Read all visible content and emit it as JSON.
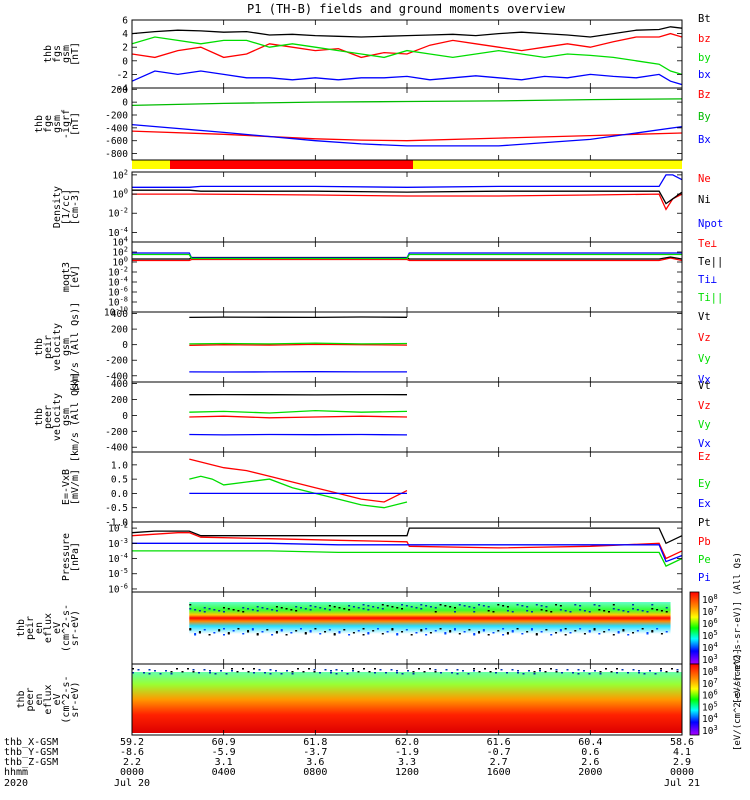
{
  "title": "P1 (TH-B) fields and ground moments overview",
  "x_axis": {
    "rows": [
      {
        "name": "thb_X-GSM",
        "values": [
          "59.2",
          "60.9",
          "61.8",
          "62.0",
          "61.6",
          "60.4",
          "58.6"
        ]
      },
      {
        "name": "thb_Y-GSM",
        "values": [
          "-8.6",
          "-5.9",
          "-3.7",
          "-1.9",
          "-0.7",
          "0.6",
          "4.1"
        ]
      },
      {
        "name": "thb_Z-GSM",
        "values": [
          "2.2",
          "3.1",
          "3.6",
          "3.3",
          "2.7",
          "2.6",
          "2.9"
        ]
      },
      {
        "name": "hhmm",
        "values": [
          "0000",
          "0400",
          "0800",
          "1200",
          "1600",
          "2000",
          "0000"
        ]
      }
    ],
    "year": "2020",
    "date_start": "Jul 20",
    "date_end": "Jul 21",
    "ticks_hours": [
      0,
      4,
      8,
      12,
      16,
      20,
      24
    ]
  },
  "chart_data": [
    {
      "type": "line",
      "ylabel": [
        "thb",
        "fgs",
        "gsm",
        "[nT]"
      ],
      "ylim": [
        -4,
        6
      ],
      "ticks": [
        "6",
        "4",
        "2",
        "0",
        "-2",
        "-4"
      ],
      "x_hours": [
        0,
        1,
        2,
        3,
        4,
        5,
        6,
        7,
        8,
        9,
        10,
        11,
        12,
        13,
        14,
        15,
        16,
        17,
        18,
        19,
        20,
        21,
        22,
        23,
        23.5,
        24
      ],
      "series": [
        {
          "name": "Bt",
          "color": "#000000",
          "values": [
            4.0,
            4.3,
            4.5,
            4.4,
            4.2,
            4.3,
            3.8,
            3.9,
            3.7,
            3.6,
            3.5,
            3.6,
            3.7,
            3.8,
            3.9,
            3.7,
            4.0,
            4.2,
            4.0,
            3.8,
            3.5,
            4.0,
            4.5,
            4.6,
            5.0,
            4.8
          ]
        },
        {
          "name": "bz",
          "color": "#ff0000",
          "values": [
            1.0,
            0.5,
            1.5,
            2.0,
            0.5,
            1.0,
            2.5,
            2.0,
            1.5,
            1.8,
            0.5,
            1.2,
            1.0,
            2.3,
            3.0,
            2.5,
            2.0,
            1.5,
            2.0,
            2.5,
            2.0,
            2.8,
            3.5,
            3.5,
            4.0,
            3.5
          ]
        },
        {
          "name": "by",
          "color": "#00dd00",
          "values": [
            2.5,
            3.5,
            3.0,
            2.5,
            3.0,
            3.0,
            2.0,
            2.5,
            2.0,
            1.5,
            1.0,
            0.5,
            1.5,
            1.0,
            0.5,
            1.0,
            1.5,
            1.0,
            0.5,
            1.0,
            0.8,
            0.5,
            0.0,
            -0.5,
            -1.5,
            -2.0
          ]
        },
        {
          "name": "bx",
          "color": "#0000ff",
          "values": [
            -3.0,
            -1.5,
            -2.0,
            -1.5,
            -2.0,
            -2.5,
            -2.5,
            -2.8,
            -2.5,
            -2.8,
            -2.5,
            -2.5,
            -2.3,
            -2.8,
            -2.5,
            -2.2,
            -2.5,
            -2.8,
            -2.3,
            -2.5,
            -2.0,
            -2.3,
            -2.5,
            -2.0,
            -3.0,
            -3.5
          ]
        }
      ]
    },
    {
      "type": "line",
      "ylabel": [
        "thb",
        "fge",
        "gsm",
        "-igrf",
        "[nT]"
      ],
      "ylim": [
        -900,
        220
      ],
      "ticks": [
        "200",
        "0",
        "-200",
        "-400",
        "-600",
        "-800"
      ],
      "x_hours": [
        0,
        4,
        8,
        10,
        12,
        16,
        20,
        24
      ],
      "series": [
        {
          "name": "Bz",
          "color": "#ff0000",
          "values": [
            -450,
            -500,
            -570,
            -590,
            -600,
            -560,
            -520,
            -480
          ]
        },
        {
          "name": "By",
          "color": "#00bb00",
          "values": [
            -50,
            -20,
            0,
            5,
            10,
            20,
            40,
            50
          ]
        },
        {
          "name": "Bx",
          "color": "#0000ff",
          "values": [
            -350,
            -470,
            -600,
            -650,
            -680,
            -680,
            -580,
            -380
          ]
        }
      ]
    },
    {
      "type": "line",
      "log": true,
      "ylabel": [
        "Density",
        "[1/cc]",
        "[cm-3]"
      ],
      "ylim": [
        -5,
        2.3
      ],
      "ticks": [
        "10^2",
        "10^0",
        "10^-2",
        "10^-4"
      ],
      "x_hours": [
        0,
        1,
        2,
        2.5,
        3,
        8,
        12,
        16,
        20,
        23,
        23.3,
        23.6,
        24
      ],
      "series": [
        {
          "name": "Ne",
          "color": "#ff0000",
          "values": [
            0.0,
            0.0,
            0.0,
            0.0,
            0.0,
            -0.1,
            -0.2,
            -0.2,
            -0.1,
            0.0,
            -1.6,
            -0.5,
            0.0
          ]
        },
        {
          "name": "Ni",
          "color": "#000000",
          "values": [
            0.4,
            0.4,
            0.4,
            0.4,
            0.3,
            0.3,
            0.2,
            0.3,
            0.3,
            0.3,
            -1.0,
            -0.5,
            0.2
          ]
        },
        {
          "name": "Npot",
          "color": "#0000ff",
          "values": [
            0.7,
            0.7,
            0.7,
            0.7,
            0.8,
            0.8,
            0.7,
            0.8,
            0.8,
            0.8,
            2.0,
            2.0,
            1.5
          ]
        }
      ]
    },
    {
      "type": "line",
      "log": true,
      "ylabel": [
        "moqt3",
        "[eV]"
      ],
      "ylim": [
        -10,
        4
      ],
      "ticks": [
        "10^4",
        "10^2",
        "10^0",
        "10^-2",
        "10^-4",
        "10^-6",
        "10^-8",
        "10^-10"
      ],
      "x_hours": [
        0,
        2.5,
        2.6,
        12,
        12.1,
        23,
        23.5,
        24
      ],
      "series": [
        {
          "name": "Te⊥",
          "color": "#ff0000",
          "values": [
            0.3,
            0.3,
            0.5,
            0.5,
            0.3,
            0.3,
            0.8,
            0.3
          ]
        },
        {
          "name": "Te||",
          "color": "#000000",
          "values": [
            0.6,
            0.6,
            0.9,
            0.9,
            0.6,
            0.6,
            1.0,
            0.6
          ]
        },
        {
          "name": "Ti⊥",
          "color": "#0000ff",
          "values": [
            1.8,
            1.8,
            0.8,
            0.8,
            1.8,
            1.8,
            1.8,
            1.8
          ]
        },
        {
          "name": "Ti||",
          "color": "#00dd00",
          "values": [
            1.5,
            1.5,
            0.7,
            0.7,
            1.5,
            1.5,
            1.5,
            1.5
          ]
        }
      ]
    },
    {
      "type": "line",
      "ylabel": [
        "thb",
        "peir",
        "velocity",
        "gsm",
        "[km/s (All Qs)]"
      ],
      "ylim": [
        -480,
        420
      ],
      "ticks": [
        "400",
        "200",
        "0",
        "-200",
        "-400"
      ],
      "x_hours": [
        2.5,
        4,
        6,
        8,
        10,
        12
      ],
      "series": [
        {
          "name": "Vt",
          "color": "#000000",
          "values": [
            350,
            355,
            352,
            350,
            356,
            352
          ]
        },
        {
          "name": "Vz",
          "color": "#ff0000",
          "values": [
            -10,
            0,
            -5,
            5,
            0,
            -5
          ]
        },
        {
          "name": "Vy",
          "color": "#00dd00",
          "values": [
            10,
            15,
            10,
            20,
            10,
            15
          ]
        },
        {
          "name": "Vx",
          "color": "#0000ff",
          "values": [
            -350,
            -352,
            -350,
            -348,
            -350,
            -350
          ]
        }
      ]
    },
    {
      "type": "line",
      "ylabel": [
        "thb",
        "peer",
        "velocity",
        "gsm",
        "[km/s (All Qs)]"
      ],
      "ylim": [
        -460,
        420
      ],
      "ticks": [
        "400",
        "200",
        "0",
        "-200",
        "-400"
      ],
      "x_hours": [
        2.5,
        4,
        6,
        8,
        10,
        12
      ],
      "series": [
        {
          "name": "Vt",
          "color": "#000000",
          "values": [
            260,
            262,
            260,
            258,
            262,
            260
          ]
        },
        {
          "name": "Vz",
          "color": "#ff0000",
          "values": [
            -20,
            -10,
            -30,
            -20,
            -10,
            -20
          ]
        },
        {
          "name": "Vy",
          "color": "#00dd00",
          "values": [
            40,
            50,
            30,
            60,
            40,
            50
          ]
        },
        {
          "name": "Vx",
          "color": "#0000ff",
          "values": [
            -240,
            -245,
            -240,
            -242,
            -240,
            -245
          ]
        }
      ]
    },
    {
      "type": "line",
      "ylabel": [
        "E=-VxB",
        "[mV/m]"
      ],
      "ylim": [
        -1.0,
        1.45
      ],
      "ticks": [
        "1.0",
        "0.5",
        "0.0",
        "-0.5",
        "-1.0"
      ],
      "x_hours": [
        2.5,
        3,
        3.5,
        4,
        5,
        6,
        7,
        8,
        9,
        10,
        11,
        12
      ],
      "series": [
        {
          "name": "Ez",
          "color": "#ff0000",
          "values": [
            1.2,
            1.1,
            1.0,
            0.9,
            0.8,
            0.6,
            0.4,
            0.2,
            0.0,
            -0.2,
            -0.3,
            0.1
          ]
        },
        {
          "name": "Ey",
          "color": "#00dd00",
          "values": [
            0.5,
            0.6,
            0.5,
            0.3,
            0.4,
            0.5,
            0.2,
            0.0,
            -0.2,
            -0.4,
            -0.5,
            -0.3
          ]
        },
        {
          "name": "Ex",
          "color": "#0000ff",
          "values": [
            0.0,
            0.0,
            0.0,
            0.0,
            0.0,
            0.0,
            0.0,
            0.0,
            0.0,
            0.0,
            0.0,
            0.0
          ]
        }
      ]
    },
    {
      "type": "line",
      "log": true,
      "ylabel": [
        "Pressure",
        "[nPa]"
      ],
      "ylim": [
        -6.2,
        -1.6
      ],
      "ticks": [
        "10^-2",
        "10^-3",
        "10^-4",
        "10^-5",
        "10^-6"
      ],
      "x_hours": [
        0,
        1,
        2,
        2.5,
        3,
        6,
        9,
        12,
        12.1,
        16,
        20,
        23,
        23.3,
        24
      ],
      "series": [
        {
          "name": "Pt",
          "color": "#000000",
          "values": [
            -2.3,
            -2.2,
            -2.2,
            -2.2,
            -2.5,
            -2.5,
            -2.5,
            -2.5,
            -2.0,
            -2.0,
            -2.0,
            -2.0,
            -3.0,
            -2.5
          ]
        },
        {
          "name": "Pb",
          "color": "#ff0000",
          "values": [
            -2.5,
            -2.4,
            -2.3,
            -2.3,
            -2.6,
            -2.7,
            -2.8,
            -2.9,
            -3.2,
            -3.3,
            -3.2,
            -3.0,
            -4.0,
            -3.5
          ]
        },
        {
          "name": "Pe",
          "color": "#00dd00",
          "values": [
            -3.5,
            -3.5,
            -3.5,
            -3.5,
            -3.5,
            -3.5,
            -3.6,
            -3.6,
            -3.6,
            -3.6,
            -3.6,
            -3.6,
            -4.5,
            -4.0
          ]
        },
        {
          "name": "Pi",
          "color": "#0000ff",
          "values": [
            -3.0,
            -3.0,
            -3.0,
            -3.0,
            -3.0,
            -3.0,
            -3.1,
            -3.1,
            -3.1,
            -3.1,
            -3.1,
            -3.1,
            -4.2,
            -3.8
          ]
        }
      ]
    },
    {
      "type": "heatmap",
      "ylabel": [
        "thb",
        "peir",
        "en",
        "eflux",
        "eV",
        "(cm^2-s-",
        "sr-eV)"
      ],
      "ticks": [
        "10000",
        "1000",
        "100",
        "10"
      ],
      "colorbar_ticks": [
        "10^8",
        "10^7",
        "10^6",
        "10^5",
        "10^4",
        "10^3"
      ],
      "colorbar_label": "[eV/(cm^2-s-sr-eV)] (All Qs)",
      "data_hours": [
        2.5,
        23.5
      ]
    },
    {
      "type": "heatmap",
      "ylabel": [
        "thb",
        "peer",
        "en",
        "eflux",
        "eV",
        "(cm^2-s-",
        "sr-eV)"
      ],
      "ticks": [
        "10000",
        "1000",
        "100",
        "10"
      ],
      "colorbar_ticks": [
        "10^8",
        "10^7",
        "10^6",
        "10^5",
        "10^4",
        "10^3"
      ],
      "colorbar_label": "[eV/(cm^2-s-sr-eV)]",
      "data_hours": [
        0,
        24
      ]
    }
  ]
}
